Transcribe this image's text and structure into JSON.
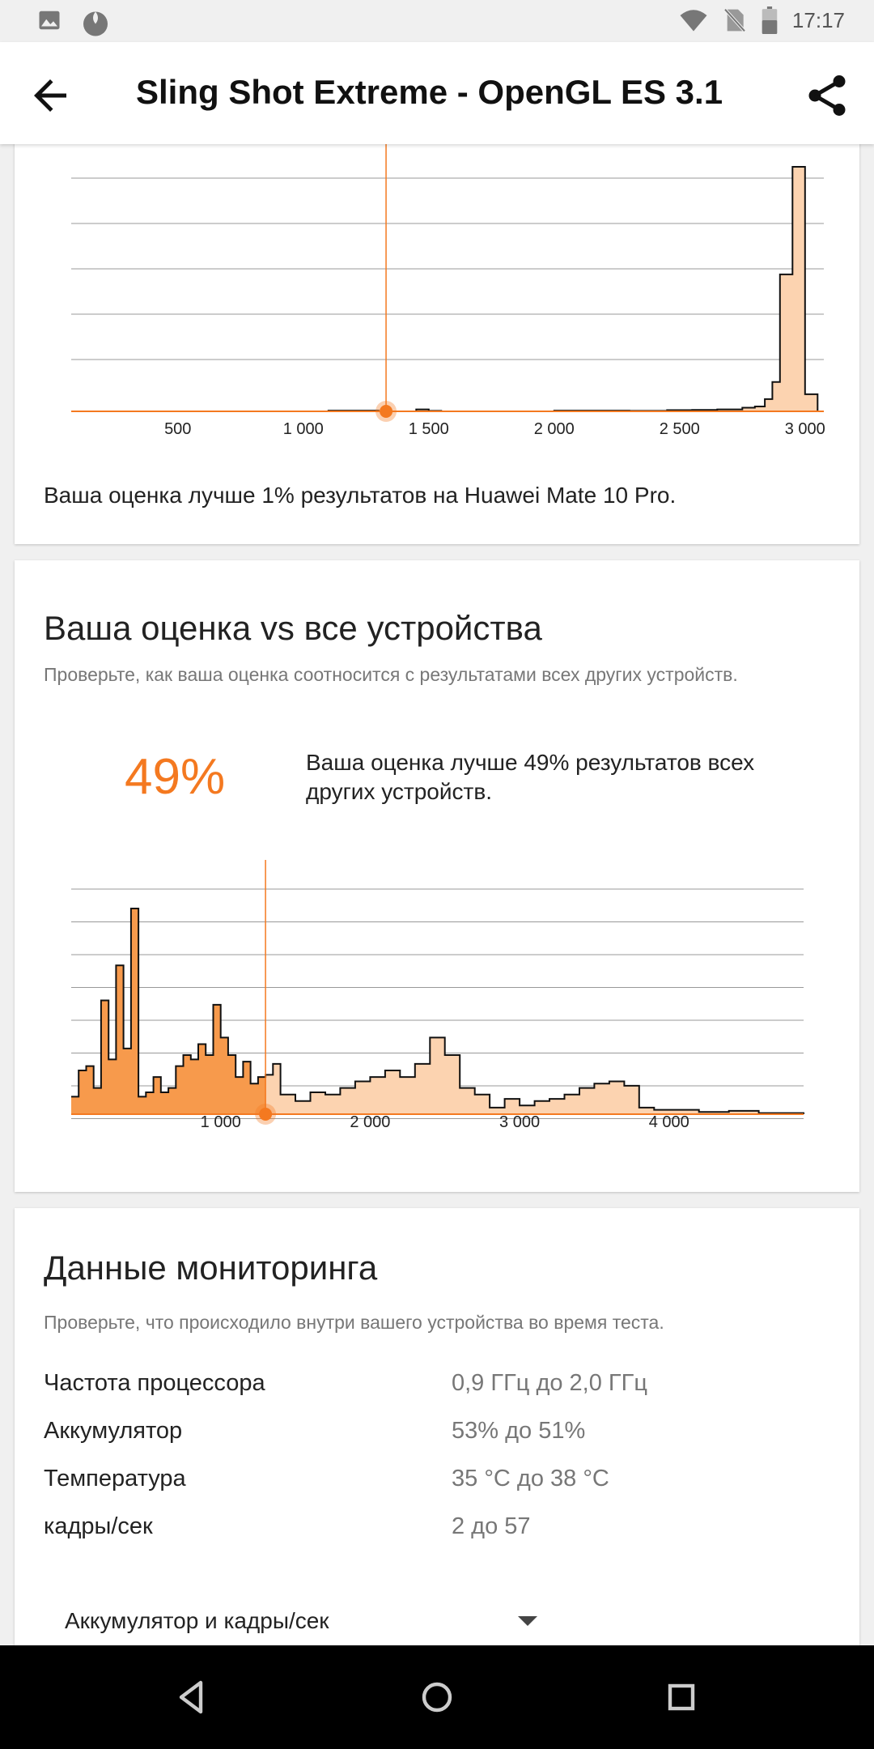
{
  "status_bar": {
    "time": "17:17",
    "icons": [
      "image-icon",
      "app-icon",
      "wifi-icon",
      "no-sim-icon",
      "battery-icon"
    ]
  },
  "app_bar": {
    "title": "Sling Shot Extreme - OpenGL ES 3.1",
    "back_icon": "arrow-left-icon",
    "share_icon": "share-icon"
  },
  "device_card": {
    "percentile_text": "Ваша оценка лучше 1% результатов на Huawei Mate 10 Pro.",
    "chart_data": {
      "type": "area",
      "x_ticks": [
        "500",
        "1 000",
        "1 500",
        "2 000",
        "2 500",
        "3 000"
      ],
      "x_tick_values": [
        500,
        1000,
        1500,
        2000,
        2500,
        3000
      ],
      "xlim": [
        75,
        3075
      ],
      "user_score": 1330,
      "grid": true,
      "fill_color": "#fcd3b0",
      "marker_color": "#f47920",
      "values": [
        [
          75,
          0
        ],
        [
          1000,
          0
        ],
        [
          1100,
          0.3
        ],
        [
          1200,
          0.3
        ],
        [
          1300,
          0
        ],
        [
          1450,
          0.8
        ],
        [
          1500,
          0.2
        ],
        [
          1550,
          0
        ],
        [
          1900,
          0
        ],
        [
          2000,
          0.3
        ],
        [
          2200,
          0.3
        ],
        [
          2300,
          0.2
        ],
        [
          2450,
          0.5
        ],
        [
          2550,
          0.6
        ],
        [
          2650,
          0.8
        ],
        [
          2750,
          1.5
        ],
        [
          2800,
          2
        ],
        [
          2840,
          5
        ],
        [
          2870,
          12
        ],
        [
          2900,
          56
        ],
        [
          2950,
          100
        ],
        [
          3000,
          7
        ],
        [
          3050,
          0
        ]
      ]
    }
  },
  "all_devices_card": {
    "title": "Ваша оценка vs все устройства",
    "subtitle": "Проверьте, как ваша оценка соотносится с результатами всех других устройств.",
    "percentile": "49%",
    "percentile_text": "Ваша оценка лучше 49% результатов всех других устройств.",
    "chart_data": {
      "type": "area",
      "x_ticks": [
        "1 000",
        "2 000",
        "3 000",
        "4 000"
      ],
      "x_tick_values": [
        1000,
        2000,
        3000,
        4000
      ],
      "xlim": [
        0,
        4900
      ],
      "user_score": 1300,
      "grid": true,
      "fill_below_color": "#f79a4c",
      "fill_above_color": "#fcd3b0",
      "marker_color": "#f47920",
      "values": [
        [
          0,
          8
        ],
        [
          50,
          20
        ],
        [
          100,
          22
        ],
        [
          150,
          12
        ],
        [
          200,
          52
        ],
        [
          250,
          25
        ],
        [
          300,
          68
        ],
        [
          350,
          30
        ],
        [
          400,
          94
        ],
        [
          450,
          8
        ],
        [
          500,
          10
        ],
        [
          550,
          17
        ],
        [
          600,
          10
        ],
        [
          650,
          12
        ],
        [
          700,
          22
        ],
        [
          750,
          27
        ],
        [
          800,
          25
        ],
        [
          850,
          32
        ],
        [
          900,
          27
        ],
        [
          950,
          50
        ],
        [
          1000,
          35
        ],
        [
          1050,
          27
        ],
        [
          1100,
          17
        ],
        [
          1150,
          24
        ],
        [
          1200,
          14
        ],
        [
          1250,
          17
        ],
        [
          1300,
          18
        ],
        [
          1350,
          23
        ],
        [
          1400,
          9
        ],
        [
          1500,
          6
        ],
        [
          1600,
          10
        ],
        [
          1700,
          9
        ],
        [
          1800,
          12
        ],
        [
          1900,
          15
        ],
        [
          2000,
          17
        ],
        [
          2100,
          20
        ],
        [
          2200,
          17
        ],
        [
          2300,
          23
        ],
        [
          2400,
          35
        ],
        [
          2500,
          27
        ],
        [
          2600,
          12
        ],
        [
          2700,
          9
        ],
        [
          2800,
          3
        ],
        [
          2900,
          7
        ],
        [
          3000,
          4
        ],
        [
          3100,
          6
        ],
        [
          3200,
          7
        ],
        [
          3300,
          9
        ],
        [
          3400,
          12
        ],
        [
          3500,
          14
        ],
        [
          3600,
          15
        ],
        [
          3700,
          13
        ],
        [
          3800,
          3
        ],
        [
          3900,
          2
        ],
        [
          4000,
          2
        ],
        [
          4200,
          1
        ],
        [
          4400,
          1.5
        ],
        [
          4600,
          0.5
        ],
        [
          4900,
          0
        ]
      ]
    }
  },
  "monitoring_card": {
    "title": "Данные мониторинга",
    "subtitle": "Проверьте, что происходило внутри вашего устройства во время теста.",
    "rows": [
      {
        "label": "Частота процессора",
        "value": "0,9 ГГц до 2,0 ГГц"
      },
      {
        "label": "Аккумулятор",
        "value": "53% до 51%"
      },
      {
        "label": "Температура",
        "value": "35 °C до 38 °C"
      },
      {
        "label": "кадры/сек",
        "value": "2 до 57"
      }
    ],
    "dropdown": {
      "selected": "Аккумулятор и кадры/сек"
    }
  },
  "nav_bar": {
    "buttons": [
      "back-triangle-icon",
      "home-circle-icon",
      "recents-square-icon"
    ]
  },
  "colors": {
    "accent": "#f47920",
    "light_fill": "#fcd3b0",
    "dark_fill": "#f79a4c"
  }
}
